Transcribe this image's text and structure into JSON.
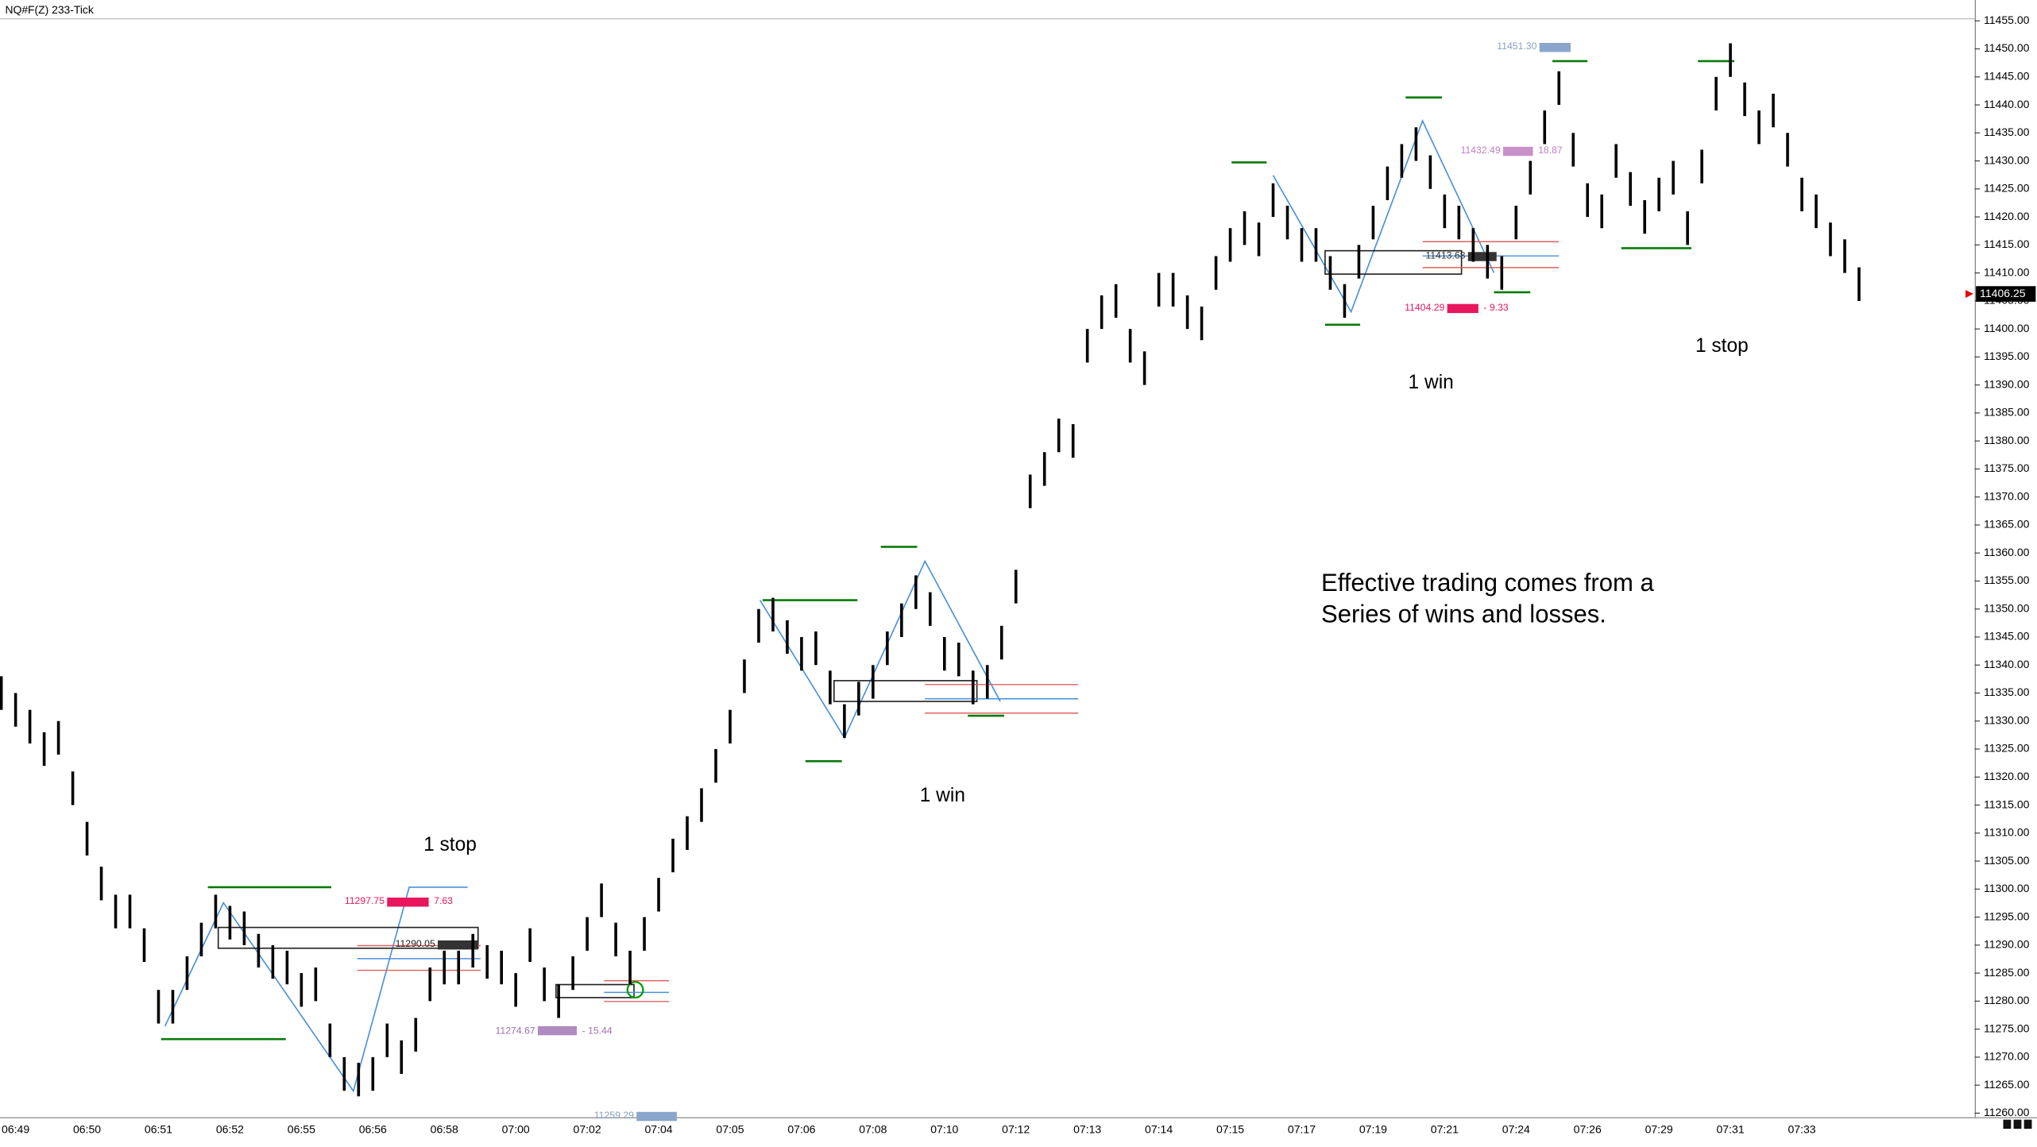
{
  "chart_data": {
    "type": "ohlc",
    "title": "NQ#F(Z) 233-Tick",
    "color": "#000000",
    "ylim": [
      11259.3,
      11456.4
    ],
    "yticks": [
      {
        "value": 11260,
        "label": "11260.00"
      },
      {
        "value": 11265,
        "label": "11265.00"
      },
      {
        "value": 11270,
        "label": "11270.00"
      },
      {
        "value": 11275,
        "label": "11275.00"
      },
      {
        "value": 11280,
        "label": "11280.00"
      },
      {
        "value": 11285,
        "label": "11285.00"
      },
      {
        "value": 11290,
        "label": "11290.00"
      },
      {
        "value": 11295,
        "label": "11295.00"
      },
      {
        "value": 11300,
        "label": "11300.00"
      },
      {
        "value": 11305,
        "label": "11305.00"
      },
      {
        "value": 11310,
        "label": "11310.00"
      },
      {
        "value": 11315,
        "label": "11315.00"
      },
      {
        "value": 11320,
        "label": "11320.00"
      },
      {
        "value": 11325,
        "label": "11325.00"
      },
      {
        "value": 11330,
        "label": "11330.00"
      },
      {
        "value": 11335,
        "label": "11335.00"
      },
      {
        "value": 11340,
        "label": "11340.00"
      },
      {
        "value": 11345,
        "label": "11345.00"
      },
      {
        "value": 11350,
        "label": "11350.00"
      },
      {
        "value": 11355,
        "label": "11355.00"
      },
      {
        "value": 11360,
        "label": "11360.00"
      },
      {
        "value": 11365,
        "label": "11365.00"
      },
      {
        "value": 11370,
        "label": "11370.00"
      },
      {
        "value": 11375,
        "label": "11375.00"
      },
      {
        "value": 11380,
        "label": "11380.00"
      },
      {
        "value": 11385,
        "label": "11385.00"
      },
      {
        "value": 11390,
        "label": "11390.00"
      },
      {
        "value": 11395,
        "label": "11395.00"
      },
      {
        "value": 11400,
        "label": "11400.00"
      },
      {
        "value": 11405,
        "label": "11405.00"
      },
      {
        "value": 11410,
        "label": "11410.00"
      },
      {
        "value": 11415,
        "label": "11415.00"
      },
      {
        "value": 11420,
        "label": "11420.00"
      },
      {
        "value": 11425,
        "label": "11425.00"
      },
      {
        "value": 11430,
        "label": "11430.00"
      },
      {
        "value": 11435,
        "label": "11435.00"
      },
      {
        "value": 11440,
        "label": "11440.00"
      },
      {
        "value": 11445,
        "label": "11445.00"
      },
      {
        "value": 11450,
        "label": "11450.00"
      },
      {
        "value": 11455,
        "label": "11455.00"
      }
    ],
    "categories": [
      null,
      "06:49",
      null,
      null,
      null,
      null,
      "06:50",
      null,
      null,
      null,
      null,
      "06:51",
      null,
      null,
      null,
      null,
      "06:52",
      null,
      null,
      null,
      null,
      "06:55",
      null,
      null,
      null,
      null,
      "06:56",
      null,
      null,
      null,
      null,
      "06:58",
      null,
      null,
      null,
      null,
      "07:00",
      null,
      null,
      null,
      null,
      "07:02",
      null,
      null,
      null,
      null,
      "07:04",
      null,
      null,
      null,
      null,
      "07:05",
      null,
      null,
      null,
      null,
      "07:06",
      null,
      null,
      null,
      null,
      "07:08",
      null,
      null,
      null,
      null,
      "07:10",
      null,
      null,
      null,
      null,
      "07:12",
      null,
      null,
      null,
      null,
      "07:13",
      null,
      null,
      null,
      null,
      "07:14",
      null,
      null,
      null,
      null,
      "07:15",
      null,
      null,
      null,
      null,
      "07:17",
      null,
      null,
      null,
      null,
      "07:19",
      null,
      null,
      null,
      null,
      "07:21",
      null,
      null,
      null,
      null,
      "07:24",
      null,
      null,
      null,
      null,
      "07:26",
      null,
      null,
      null,
      null,
      "07:29",
      null,
      null,
      null,
      null,
      "07:31",
      null,
      null,
      null,
      null,
      "07:33",
      null,
      null,
      null,
      null
    ],
    "high": [
      11338,
      11335,
      11332,
      11328,
      11330,
      11321,
      11312,
      11304,
      11299,
      11299,
      11293,
      11282,
      11282,
      11288,
      11294,
      11299,
      11297,
      11296,
      11292,
      11290,
      11289,
      11285,
      11286,
      11276,
      11270,
      11269,
      11270,
      11276,
      11273,
      11277,
      11286,
      11289,
      11289,
      11292,
      11290,
      11289,
      11285,
      11293,
      11286,
      11283,
      11288,
      11295,
      11301,
      11294,
      11289,
      11295,
      11302,
      11309,
      11313,
      11318,
      11325,
      11332,
      11341,
      11350,
      11352,
      11348,
      11345,
      11346,
      11339,
      11333,
      11337,
      11340,
      11346,
      11351,
      11356,
      11353,
      11345,
      11344,
      11339,
      11340,
      11347,
      11357,
      11374,
      11378,
      11384,
      11383,
      11400,
      11406,
      11408,
      11400,
      11396,
      11410,
      11410,
      11406,
      11404,
      11413,
      11418,
      11421,
      11419,
      11426,
      11422,
      11418,
      11418,
      11413,
      11408,
      11415,
      11422,
      11429,
      11433,
      11436,
      11431,
      11424,
      11422,
      11418,
      11415,
      11413,
      11422,
      11430,
      11439,
      11446,
      11435,
      11426,
      11424,
      11433,
      11428,
      11423,
      11427,
      11430,
      11421,
      11432,
      11445,
      11451,
      11444,
      11439,
      11442,
      11435,
      11427,
      11424,
      11419,
      11416,
      11411
    ],
    "low": [
      11332,
      11329,
      11326,
      11322,
      11324,
      11315,
      11306,
      11298,
      11293,
      11293,
      11287,
      11276,
      11276,
      11282,
      11288,
      11293,
      11291,
      11290,
      11286,
      11284,
      11283,
      11279,
      11280,
      11270,
      11264,
      11263,
      11264,
      11270,
      11267,
      11271,
      11280,
      11283,
      11283,
      11286,
      11284,
      11283,
      11279,
      11287,
      11280,
      11277,
      11282,
      11289,
      11295,
      11288,
      11283,
      11289,
      11296,
      11303,
      11307,
      11312,
      11319,
      11326,
      11335,
      11344,
      11346,
      11342,
      11339,
      11340,
      11333,
      11327,
      11331,
      11334,
      11340,
      11345,
      11350,
      11347,
      11339,
      11338,
      11333,
      11334,
      11341,
      11351,
      11368,
      11372,
      11378,
      11377,
      11394,
      11400,
      11402,
      11394,
      11390,
      11404,
      11404,
      11400,
      11398,
      11407,
      11412,
      11415,
      11413,
      11420,
      11416,
      11412,
      11412,
      11407,
      11402,
      11409,
      11416,
      11423,
      11427,
      11430,
      11425,
      11418,
      11416,
      11412,
      11409,
      11407,
      11416,
      11424,
      11433,
      11440,
      11429,
      11420,
      11418,
      11427,
      11422,
      11417,
      11421,
      11424,
      11415,
      11426,
      11439,
      11445,
      11438,
      11433,
      11436,
      11429,
      11421,
      11418,
      11413,
      11410,
      11405
    ],
    "last_price": 11406.25,
    "annotations": [
      "1 stop",
      "1 win",
      "1 win",
      "1 stop",
      "Effective trading comes from a",
      "Series of wins and losses."
    ],
    "trade_labels": [
      {
        "text": "11297.75",
        "color": "#e8175d"
      },
      {
        "text": "7.63",
        "color": "#e8175d"
      },
      {
        "text": "11290.05",
        "color": "#222222"
      },
      {
        "text": "11274.67",
        "color": "#a070b0"
      },
      {
        "text": "- 15.44",
        "color": "#a070b0"
      },
      {
        "text": "11259.29",
        "color": "#8aa0c0"
      },
      {
        "text": "11451.30",
        "color": "#8aa0c0"
      },
      {
        "text": "11432.49",
        "color": "#c080c0"
      },
      {
        "text": "18.87",
        "color": "#c080c0"
      },
      {
        "text": "11413.68",
        "color": "#333333"
      },
      {
        "text": "11404.29",
        "color": "#e8175d"
      },
      {
        "text": "- 9.33",
        "color": "#e8175d"
      }
    ]
  }
}
